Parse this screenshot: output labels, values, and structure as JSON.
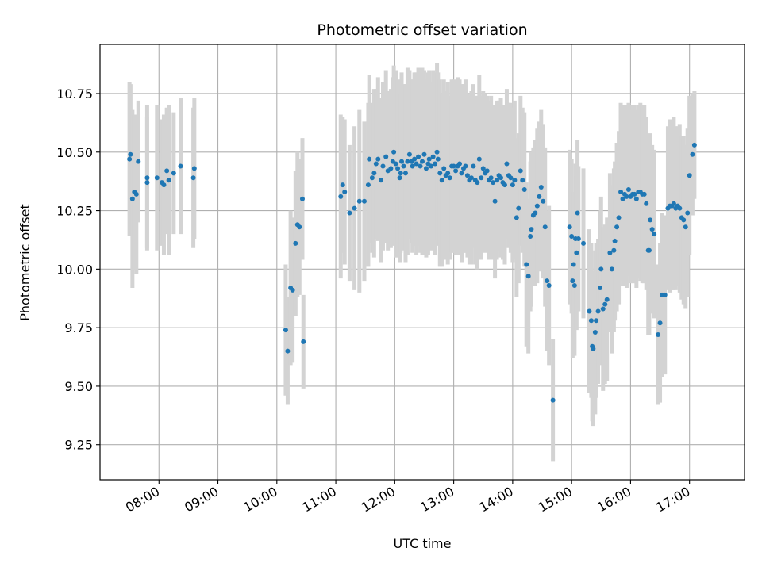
{
  "chart_data": {
    "type": "scatter",
    "title": "Photometric offset variation",
    "xlabel": "UTC time",
    "ylabel": "Photometric offset",
    "x_kind": "time_of_day",
    "xlim": [
      "07:00",
      "17:56"
    ],
    "ylim": [
      9.1,
      10.96
    ],
    "grid": true,
    "colors": {
      "points": "#1f77b4",
      "error_bars": "#d3d3d3",
      "grid": "#b0b0b0"
    },
    "x_ticks": [
      "08:00",
      "09:00",
      "10:00",
      "11:00",
      "12:00",
      "13:00",
      "14:00",
      "15:00",
      "16:00",
      "17:00"
    ],
    "y_ticks": [
      "9.25",
      "9.50",
      "9.75",
      "10.00",
      "10.25",
      "10.50",
      "10.75"
    ],
    "points": [
      [
        "07:30",
        10.47,
        0.33
      ],
      [
        "07:31",
        10.49,
        0.3
      ],
      [
        "07:33",
        10.3,
        0.38
      ],
      [
        "07:35",
        10.33,
        0.33
      ],
      [
        "07:37",
        10.32,
        0.34
      ],
      [
        "07:39",
        10.46,
        0.26
      ],
      [
        "07:48",
        10.39,
        0.31
      ],
      [
        "07:48",
        10.37,
        0.28
      ],
      [
        "07:58",
        10.39,
        0.31
      ],
      [
        "08:03",
        10.37,
        0.27
      ],
      [
        "08:05",
        10.36,
        0.3
      ],
      [
        "08:08",
        10.42,
        0.27
      ],
      [
        "08:10",
        10.38,
        0.32
      ],
      [
        "08:15",
        10.41,
        0.26
      ],
      [
        "08:22",
        10.44,
        0.29
      ],
      [
        "08:35",
        10.39,
        0.3
      ],
      [
        "08:36",
        10.43,
        0.3
      ],
      [
        "10:09",
        9.74,
        0.28
      ],
      [
        "10:11",
        9.65,
        0.23
      ],
      [
        "10:14",
        9.92,
        0.33
      ],
      [
        "10:16",
        9.91,
        0.31
      ],
      [
        "10:19",
        10.11,
        0.31
      ],
      [
        "10:21",
        10.19,
        0.31
      ],
      [
        "10:23",
        10.18,
        0.29
      ],
      [
        "10:26",
        10.3,
        0.26
      ],
      [
        "10:27",
        9.69,
        0.2
      ],
      [
        "11:05",
        10.31,
        0.35
      ],
      [
        "11:07",
        10.36,
        0.29
      ],
      [
        "11:09",
        10.33,
        0.31
      ],
      [
        "11:14",
        10.24,
        0.29
      ],
      [
        "11:19",
        10.26,
        0.35
      ],
      [
        "11:24",
        10.29,
        0.39
      ],
      [
        "11:29",
        10.29,
        0.34
      ],
      [
        "11:33",
        10.36,
        0.35
      ],
      [
        "11:34",
        10.47,
        0.36
      ],
      [
        "11:37",
        10.39,
        0.32
      ],
      [
        "11:39",
        10.41,
        0.36
      ],
      [
        "11:41",
        10.45,
        0.32
      ],
      [
        "11:43",
        10.47,
        0.35
      ],
      [
        "11:46",
        10.38,
        0.35
      ],
      [
        "11:48",
        10.44,
        0.36
      ],
      [
        "11:51",
        10.48,
        0.37
      ],
      [
        "11:53",
        10.42,
        0.34
      ],
      [
        "11:56",
        10.43,
        0.34
      ],
      [
        "11:58",
        10.46,
        0.36
      ],
      [
        "11:59",
        10.5,
        0.37
      ],
      [
        "12:01",
        10.45,
        0.4
      ],
      [
        "12:03",
        10.43,
        0.38
      ],
      [
        "12:05",
        10.39,
        0.36
      ],
      [
        "12:06",
        10.41,
        0.34
      ],
      [
        "12:07",
        10.46,
        0.38
      ],
      [
        "12:09",
        10.44,
        0.35
      ],
      [
        "12:11",
        10.41,
        0.38
      ],
      [
        "12:13",
        10.46,
        0.4
      ],
      [
        "12:15",
        10.49,
        0.36
      ],
      [
        "12:17",
        10.46,
        0.35
      ],
      [
        "12:18",
        10.44,
        0.37
      ],
      [
        "12:20",
        10.47,
        0.37
      ],
      [
        "12:22",
        10.45,
        0.39
      ],
      [
        "12:24",
        10.48,
        0.38
      ],
      [
        "12:26",
        10.44,
        0.37
      ],
      [
        "12:28",
        10.46,
        0.4
      ],
      [
        "12:30",
        10.49,
        0.36
      ],
      [
        "12:32",
        10.43,
        0.38
      ],
      [
        "12:34",
        10.45,
        0.39
      ],
      [
        "12:35",
        10.47,
        0.38
      ],
      [
        "12:37",
        10.44,
        0.36
      ],
      [
        "12:39",
        10.48,
        0.37
      ],
      [
        "12:41",
        10.45,
        0.39
      ],
      [
        "12:43",
        10.5,
        0.38
      ],
      [
        "12:44",
        10.47,
        0.37
      ],
      [
        "12:46",
        10.41,
        0.4
      ],
      [
        "12:48",
        10.38,
        0.37
      ],
      [
        "12:50",
        10.43,
        0.38
      ],
      [
        "12:52",
        10.4,
        0.36
      ],
      [
        "12:54",
        10.41,
        0.39
      ],
      [
        "12:56",
        10.39,
        0.35
      ],
      [
        "12:58",
        10.44,
        0.37
      ],
      [
        "13:00",
        10.44,
        0.37
      ],
      [
        "13:02",
        10.42,
        0.36
      ],
      [
        "13:04",
        10.44,
        0.38
      ],
      [
        "13:06",
        10.45,
        0.36
      ],
      [
        "13:08",
        10.41,
        0.38
      ],
      [
        "13:10",
        10.43,
        0.36
      ],
      [
        "13:12",
        10.44,
        0.37
      ],
      [
        "13:14",
        10.4,
        0.35
      ],
      [
        "13:16",
        10.38,
        0.36
      ],
      [
        "13:18",
        10.39,
        0.37
      ],
      [
        "13:20",
        10.44,
        0.35
      ],
      [
        "13:22",
        10.38,
        0.36
      ],
      [
        "13:24",
        10.37,
        0.37
      ],
      [
        "13:26",
        10.47,
        0.36
      ],
      [
        "13:28",
        10.39,
        0.35
      ],
      [
        "13:30",
        10.43,
        0.33
      ],
      [
        "13:32",
        10.41,
        0.34
      ],
      [
        "13:34",
        10.42,
        0.32
      ],
      [
        "13:36",
        10.38,
        0.34
      ],
      [
        "13:38",
        10.39,
        0.35
      ],
      [
        "13:40",
        10.37,
        0.33
      ],
      [
        "13:42",
        10.29,
        0.33
      ],
      [
        "13:44",
        10.38,
        0.34
      ],
      [
        "13:46",
        10.4,
        0.32
      ],
      [
        "13:48",
        10.39,
        0.34
      ],
      [
        "13:50",
        10.37,
        0.33
      ],
      [
        "13:52",
        10.36,
        0.34
      ],
      [
        "13:54",
        10.45,
        0.32
      ],
      [
        "13:56",
        10.4,
        0.31
      ],
      [
        "13:58",
        10.39,
        0.32
      ],
      [
        "14:00",
        10.36,
        0.33
      ],
      [
        "14:02",
        10.38,
        0.34
      ],
      [
        "14:04",
        10.22,
        0.34
      ],
      [
        "14:06",
        10.26,
        0.32
      ],
      [
        "14:08",
        10.42,
        0.32
      ],
      [
        "14:10",
        10.38,
        0.31
      ],
      [
        "14:12",
        10.34,
        0.33
      ],
      [
        "14:14",
        10.02,
        0.35
      ],
      [
        "14:16",
        9.97,
        0.33
      ],
      [
        "14:18",
        10.14,
        0.32
      ],
      [
        "14:19",
        10.17,
        0.33
      ],
      [
        "14:21",
        10.23,
        0.29
      ],
      [
        "14:23",
        10.24,
        0.31
      ],
      [
        "14:25",
        10.27,
        0.33
      ],
      [
        "14:27",
        10.31,
        0.32
      ],
      [
        "14:29",
        10.35,
        0.33
      ],
      [
        "14:31",
        10.29,
        0.33
      ],
      [
        "14:33",
        10.18,
        0.34
      ],
      [
        "14:35",
        9.95,
        0.3
      ],
      [
        "14:37",
        9.93,
        0.34
      ],
      [
        "14:41",
        9.44,
        0.26
      ],
      [
        "14:58",
        10.18,
        0.33
      ],
      [
        "15:00",
        10.14,
        0.33
      ],
      [
        "15:01",
        9.95,
        0.33
      ],
      [
        "15:02",
        10.02,
        0.31
      ],
      [
        "15:03",
        9.93,
        0.3
      ],
      [
        "15:04",
        10.13,
        0.32
      ],
      [
        "15:05",
        10.07,
        0.33
      ],
      [
        "15:06",
        10.24,
        0.31
      ],
      [
        "15:07",
        10.13,
        0.31
      ],
      [
        "15:12",
        10.11,
        0.32
      ],
      [
        "15:18",
        9.82,
        0.35
      ],
      [
        "15:20",
        9.78,
        0.33
      ],
      [
        "15:21",
        9.67,
        0.32
      ],
      [
        "15:22",
        9.66,
        0.33
      ],
      [
        "15:24",
        9.73,
        0.35
      ],
      [
        "15:25",
        9.78,
        0.33
      ],
      [
        "15:27",
        9.82,
        0.31
      ],
      [
        "15:29",
        9.92,
        0.33
      ],
      [
        "15:30",
        10.0,
        0.31
      ],
      [
        "15:32",
        9.83,
        0.35
      ],
      [
        "15:34",
        9.85,
        0.34
      ],
      [
        "15:36",
        9.87,
        0.35
      ],
      [
        "15:39",
        10.07,
        0.34
      ],
      [
        "15:41",
        10.0,
        0.36
      ],
      [
        "15:43",
        10.08,
        0.35
      ],
      [
        "15:44",
        10.12,
        0.34
      ],
      [
        "15:46",
        10.18,
        0.36
      ],
      [
        "15:48",
        10.22,
        0.37
      ],
      [
        "15:50",
        10.33,
        0.38
      ],
      [
        "15:52",
        10.3,
        0.37
      ],
      [
        "15:54",
        10.32,
        0.38
      ],
      [
        "15:56",
        10.31,
        0.39
      ],
      [
        "15:58",
        10.34,
        0.37
      ],
      [
        "16:00",
        10.31,
        0.37
      ],
      [
        "16:02",
        10.32,
        0.38
      ],
      [
        "16:04",
        10.32,
        0.38
      ],
      [
        "16:06",
        10.3,
        0.38
      ],
      [
        "16:08",
        10.33,
        0.37
      ],
      [
        "16:10",
        10.33,
        0.38
      ],
      [
        "16:12",
        10.32,
        0.38
      ],
      [
        "16:14",
        10.32,
        0.38
      ],
      [
        "16:16",
        10.28,
        0.37
      ],
      [
        "16:18",
        10.08,
        0.36
      ],
      [
        "16:19",
        10.08,
        0.36
      ],
      [
        "16:20",
        10.21,
        0.37
      ],
      [
        "16:22",
        10.17,
        0.36
      ],
      [
        "16:24",
        10.15,
        0.36
      ],
      [
        "16:28",
        9.72,
        0.3
      ],
      [
        "16:30",
        9.77,
        0.34
      ],
      [
        "16:32",
        9.89,
        0.35
      ],
      [
        "16:35",
        9.89,
        0.34
      ],
      [
        "16:38",
        10.26,
        0.35
      ],
      [
        "16:40",
        10.27,
        0.37
      ],
      [
        "16:42",
        10.27,
        0.36
      ],
      [
        "16:44",
        10.28,
        0.37
      ],
      [
        "16:46",
        10.26,
        0.35
      ],
      [
        "16:48",
        10.27,
        0.34
      ],
      [
        "16:50",
        10.26,
        0.36
      ],
      [
        "16:52",
        10.22,
        0.35
      ],
      [
        "16:54",
        10.21,
        0.36
      ],
      [
        "16:56",
        10.18,
        0.35
      ],
      [
        "16:58",
        10.24,
        0.36
      ],
      [
        "17:00",
        10.4,
        0.34
      ],
      [
        "17:03",
        10.49,
        0.26
      ],
      [
        "17:05",
        10.53,
        0.23
      ]
    ]
  }
}
